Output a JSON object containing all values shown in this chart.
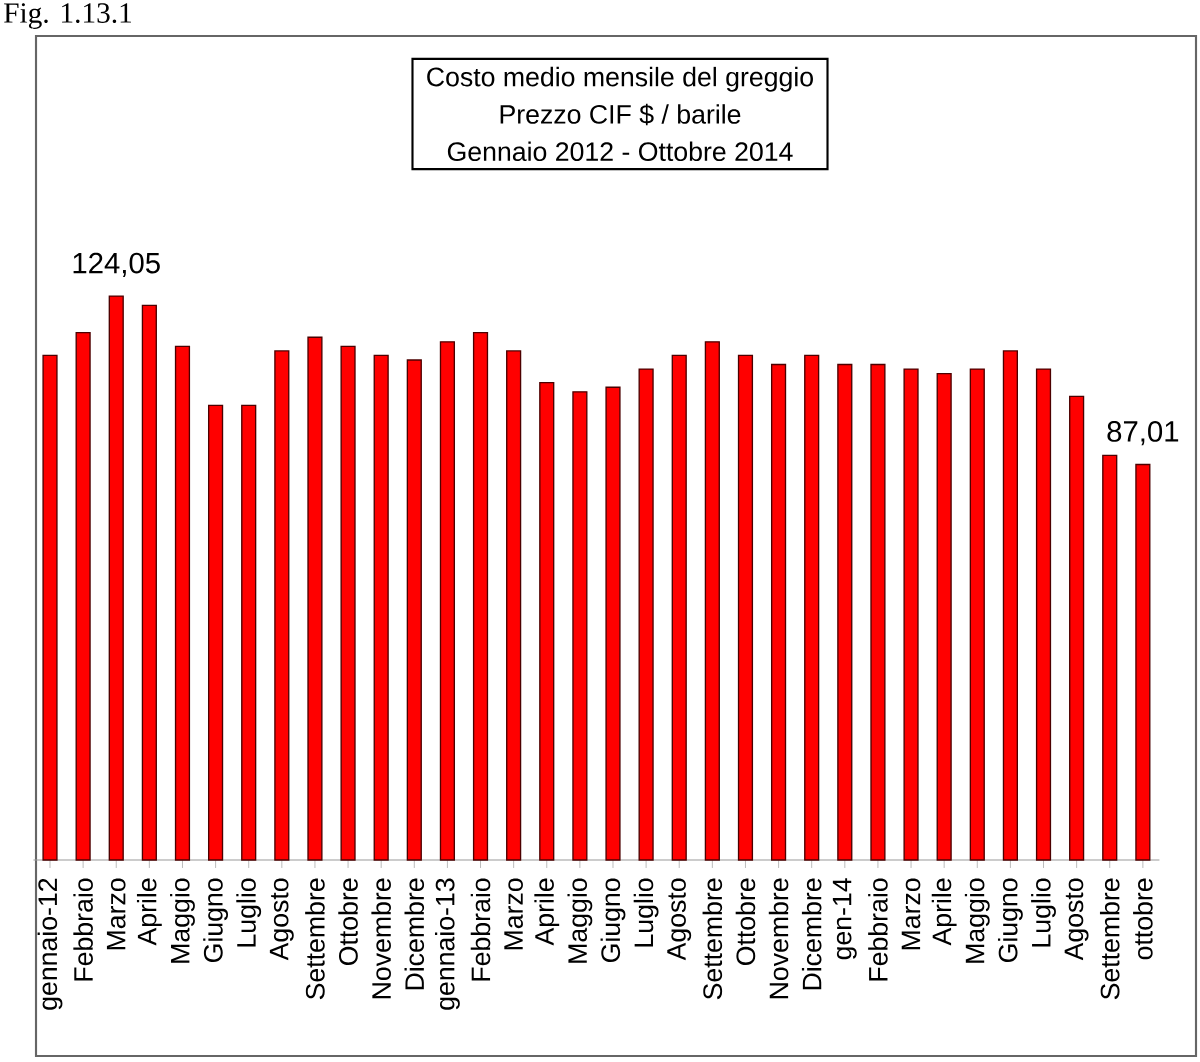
{
  "chart_data": {
    "type": "bar",
    "title": "Costo medio mensile del greggio",
    "subtitle": "Prezzo CIF $ / barile",
    "annotations": [
      "Fig. 1.13.1",
      "Gennaio 2012 - Ottobre 2014"
    ],
    "categories": [
      "gennaio-12",
      "Febbraio",
      "Marzo",
      "Aprile",
      "Maggio",
      "Giugno",
      "Luglio",
      "Agosto",
      "Settembre",
      "Ottobre",
      "Novembre",
      "Dicembre",
      "gennaio-13",
      "Febbraio",
      "Marzo",
      "Aprile",
      "Maggio",
      "Giugno",
      "Luglio",
      "Agosto",
      "Settembre",
      "Ottobre",
      "Novembre",
      "Dicembre",
      "gen-14",
      "Febbraio",
      "Marzo",
      "Aprile",
      "Maggio",
      "Giugno",
      "Luglio",
      "Agosto",
      "Settembre",
      "ottobre"
    ],
    "values": [
      111,
      116,
      124.05,
      122,
      113,
      100,
      100,
      112,
      115,
      113,
      111,
      110,
      114,
      116,
      112,
      105,
      103,
      104,
      108,
      111,
      114,
      111,
      109,
      111,
      109,
      109,
      108,
      107,
      108,
      112,
      108,
      102,
      89,
      87.01
    ],
    "value_labels": [
      null,
      null,
      "124,05",
      null,
      null,
      null,
      null,
      null,
      null,
      null,
      null,
      null,
      null,
      null,
      null,
      null,
      null,
      null,
      null,
      null,
      null,
      null,
      null,
      null,
      null,
      null,
      null,
      null,
      null,
      null,
      null,
      null,
      null,
      "87,01"
    ],
    "color": "#ff0000"
  }
}
